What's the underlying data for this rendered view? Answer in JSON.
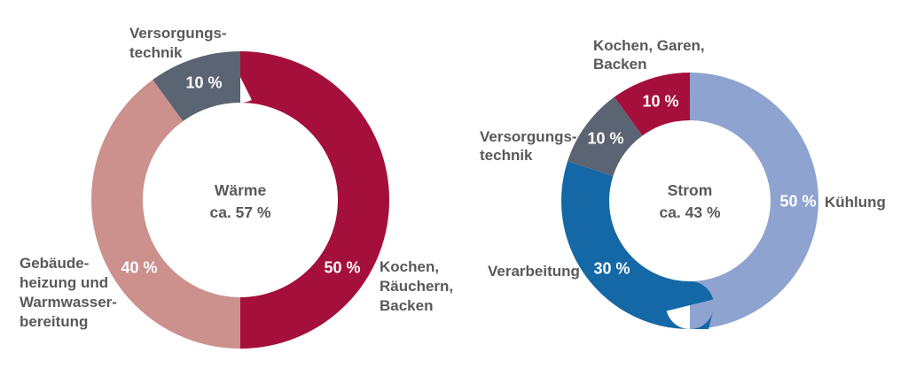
{
  "figure": {
    "background": "#ffffff",
    "label_text_color": "#595959",
    "value_text_color": "#ffffff"
  },
  "chart_data": [
    {
      "type": "pie",
      "variant": "donut",
      "title": "Wärme",
      "center_title": "Wärme",
      "center_subtitle": "ca. 57 %",
      "units": "%",
      "start_angle_deg": 0,
      "direction": "clockwise",
      "legend": "none (direct labels)",
      "segments": [
        {
          "label": "Kochen, Räuchern, Backen",
          "label_lines": [
            "Kochen,",
            "Räuchern,",
            "Backen"
          ],
          "value_pct": 50,
          "value_label": "50 %",
          "color": "#A50F3B"
        },
        {
          "label": "Gebäudeheizung und Warmwasserbereitung",
          "label_lines": [
            "Gebäude-",
            "heizung und",
            "Warmwasser-",
            "bereitung"
          ],
          "value_pct": 40,
          "value_label": "40 %",
          "color": "#CC908D"
        },
        {
          "label": "Versorgungstechnik",
          "label_lines": [
            "Versorgungs-",
            "technik"
          ],
          "value_pct": 10,
          "value_label": "10 %",
          "color": "#5A6472"
        }
      ]
    },
    {
      "type": "pie",
      "variant": "donut",
      "title": "Strom",
      "center_title": "Strom",
      "center_subtitle": "ca. 43 %",
      "units": "%",
      "start_angle_deg": 0,
      "direction": "clockwise",
      "legend": "none (direct labels)",
      "segments": [
        {
          "label": "Kühlung",
          "label_lines": [
            "Kühlung"
          ],
          "value_pct": 50,
          "value_label": "50 %",
          "color": "#8EA3D0"
        },
        {
          "label": "Verarbeitung",
          "label_lines": [
            "Verarbeitung"
          ],
          "value_pct": 30,
          "value_label": "30 %",
          "color": "#1568A6"
        },
        {
          "label": "Versorgungstechnik",
          "label_lines": [
            "Versorgungs-",
            "technik"
          ],
          "value_pct": 10,
          "value_label": "10 %",
          "color": "#5A6472"
        },
        {
          "label": "Kochen, Garen, Backen",
          "label_lines": [
            "Kochen, Garen,",
            "Backen"
          ],
          "value_pct": 10,
          "value_label": "10 %",
          "color": "#A50F3B"
        }
      ]
    }
  ]
}
